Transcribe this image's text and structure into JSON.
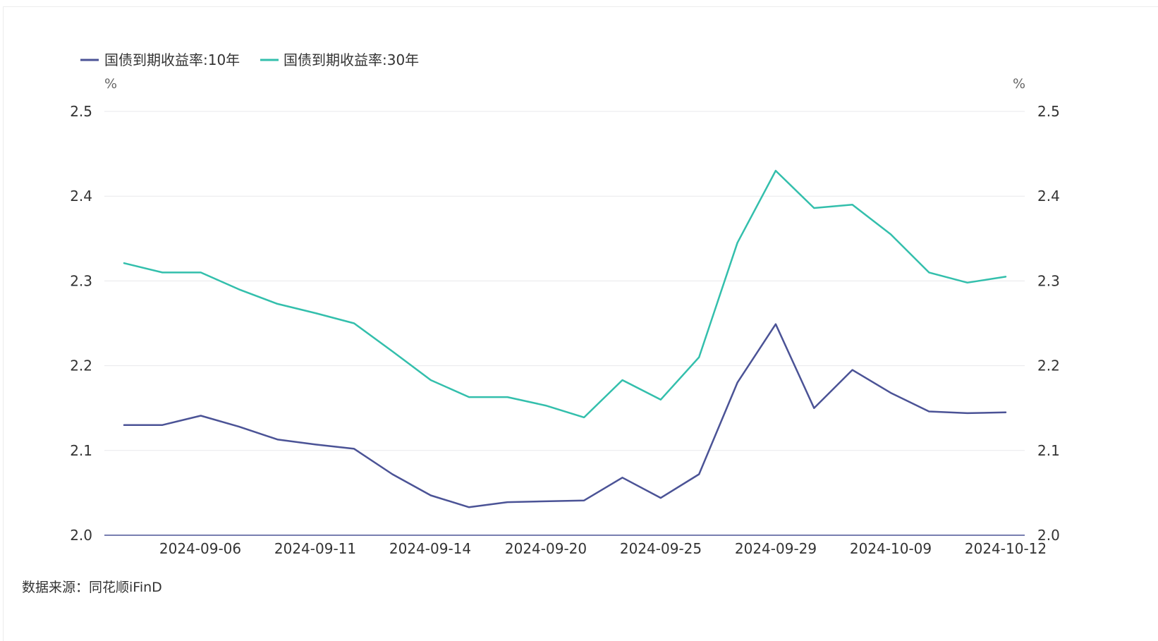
{
  "chart_data": {
    "type": "line",
    "title": "",
    "x": [
      "2024-09-04",
      "2024-09-05",
      "2024-09-06",
      "2024-09-09",
      "2024-09-10",
      "2024-09-11",
      "2024-09-12",
      "2024-09-13",
      "2024-09-14",
      "2024-09-18",
      "2024-09-19",
      "2024-09-20",
      "2024-09-23",
      "2024-09-24",
      "2024-09-25",
      "2024-09-26",
      "2024-09-27",
      "2024-09-29",
      "2024-09-30",
      "2024-10-08",
      "2024-10-09",
      "2024-10-10",
      "2024-10-11",
      "2024-10-12"
    ],
    "xticks": [
      "2024-09-06",
      "2024-09-11",
      "2024-09-14",
      "2024-09-20",
      "2024-09-25",
      "2024-09-29",
      "2024-10-09",
      "2024-10-12"
    ],
    "series": [
      {
        "name": "国债到期收益率:10年",
        "color": "#4b5396",
        "axis": "left",
        "values": [
          2.13,
          2.13,
          2.141,
          2.128,
          2.113,
          2.107,
          2.102,
          2.072,
          2.047,
          2.033,
          2.039,
          2.04,
          2.041,
          2.068,
          2.044,
          2.072,
          2.18,
          2.249,
          2.15,
          2.195,
          2.168,
          2.146,
          2.144,
          2.145
        ]
      },
      {
        "name": "国债到期收益率:30年",
        "color": "#33bfac",
        "axis": "right",
        "values": [
          2.321,
          2.31,
          2.31,
          2.29,
          2.273,
          2.262,
          2.25,
          2.217,
          2.183,
          2.163,
          2.163,
          2.153,
          2.139,
          2.183,
          2.16,
          2.21,
          2.345,
          2.43,
          2.386,
          2.39,
          2.355,
          2.31,
          2.298,
          2.305
        ]
      }
    ],
    "y_left": {
      "unit": "%",
      "ylim": [
        2.0,
        2.5
      ],
      "ticks": [
        "2.0",
        "2.1",
        "2.2",
        "2.3",
        "2.4",
        "2.5"
      ]
    },
    "y_right": {
      "unit": "%",
      "ylim": [
        2.0,
        2.5
      ],
      "ticks": [
        "2.0",
        "2.1",
        "2.2",
        "2.3",
        "2.4",
        "2.5"
      ]
    },
    "grid": true,
    "legend_position": "top-left"
  },
  "source": "数据来源：同花顺iFinD",
  "colors": {
    "grid": "#e8e8ec",
    "baseline": "#4b5396",
    "text": "#333333"
  }
}
